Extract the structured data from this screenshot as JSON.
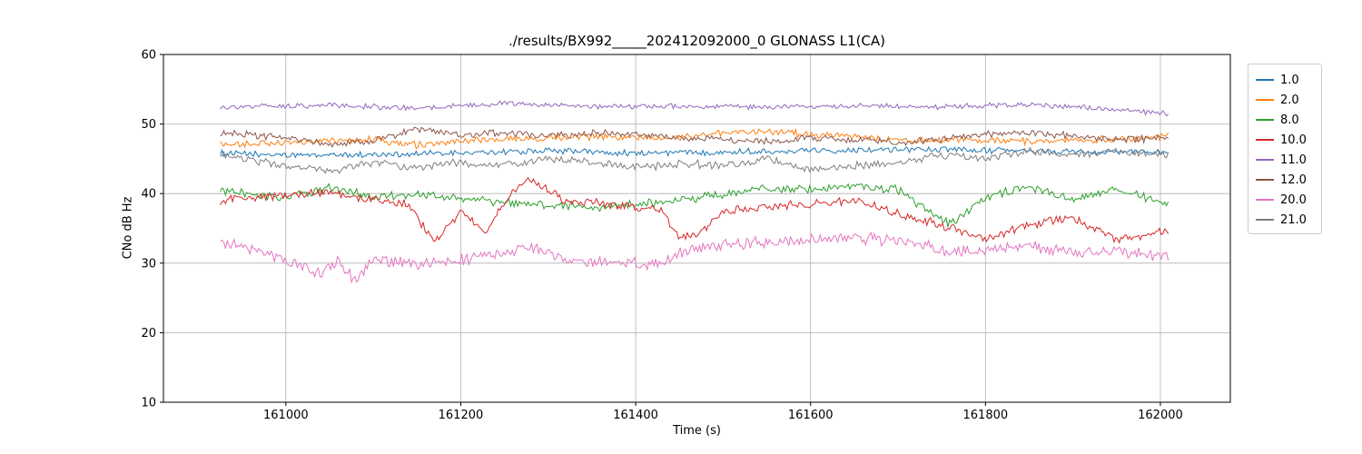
{
  "figure": {
    "title": "./results/BX992_____202412092000_0 GLONASS L1(CA)",
    "xlabel": "Time (s)",
    "ylabel": "CNo dB Hz"
  },
  "chart_data": {
    "type": "line",
    "title": "./results/BX992_____202412092000_0 GLONASS L1(CA)",
    "xlabel": "Time (s)",
    "ylabel": "CNo dB Hz",
    "xlim": [
      160860,
      162080
    ],
    "ylim": [
      10,
      60
    ],
    "x_ticks": [
      161000,
      161200,
      161400,
      161600,
      161800,
      162000
    ],
    "y_ticks": [
      10,
      20,
      30,
      40,
      50,
      60
    ],
    "grid": true,
    "grid_color": "#b0b0b0",
    "legend_position": "outside-upper-right",
    "legend_labels": [
      "1.0",
      "2.0",
      "8.0",
      "10.0",
      "11.0",
      "12.0",
      "20.0",
      "21.0"
    ],
    "series": [
      {
        "name": "1.0",
        "color": "#1f77b4",
        "noise": 0.35,
        "points": [
          [
            160925,
            45.8
          ],
          [
            161000,
            45.5
          ],
          [
            161100,
            45.6
          ],
          [
            161200,
            45.8
          ],
          [
            161300,
            46.2
          ],
          [
            161400,
            45.8
          ],
          [
            161500,
            46.0
          ],
          [
            161600,
            46.2
          ],
          [
            161700,
            46.4
          ],
          [
            161800,
            46.2
          ],
          [
            161900,
            46.0
          ],
          [
            162010,
            46.0
          ]
        ]
      },
      {
        "name": "2.0",
        "color": "#ff7f0e",
        "noise": 0.4,
        "points": [
          [
            160925,
            47.0
          ],
          [
            161000,
            47.3
          ],
          [
            161100,
            47.8
          ],
          [
            161150,
            47.0
          ],
          [
            161250,
            47.8
          ],
          [
            161350,
            48.2
          ],
          [
            161450,
            48.0
          ],
          [
            161500,
            48.8
          ],
          [
            161550,
            48.9
          ],
          [
            161650,
            48.2
          ],
          [
            161700,
            47.5
          ],
          [
            161750,
            47.8
          ],
          [
            161850,
            47.5
          ],
          [
            161950,
            47.8
          ],
          [
            162010,
            48.3
          ]
        ]
      },
      {
        "name": "8.0",
        "color": "#2ca02c",
        "noise": 0.5,
        "points": [
          [
            160925,
            40.3
          ],
          [
            161000,
            39.5
          ],
          [
            161050,
            40.8
          ],
          [
            161100,
            39.5
          ],
          [
            161150,
            39.8
          ],
          [
            161250,
            38.8
          ],
          [
            161350,
            38.0
          ],
          [
            161400,
            38.5
          ],
          [
            161450,
            39.0
          ],
          [
            161550,
            40.8
          ],
          [
            161600,
            40.5
          ],
          [
            161650,
            41.2
          ],
          [
            161700,
            40.5
          ],
          [
            161760,
            35.5
          ],
          [
            161800,
            39.5
          ],
          [
            161850,
            41.0
          ],
          [
            161900,
            39.0
          ],
          [
            161950,
            40.8
          ],
          [
            162010,
            38.5
          ]
        ]
      },
      {
        "name": "10.0",
        "color": "#d62728",
        "noise": 0.5,
        "points": [
          [
            160925,
            39.0
          ],
          [
            161000,
            39.8
          ],
          [
            161050,
            40.2
          ],
          [
            161100,
            39.0
          ],
          [
            161140,
            38.5
          ],
          [
            161170,
            33.0
          ],
          [
            161200,
            37.5
          ],
          [
            161230,
            34.5
          ],
          [
            161260,
            40.5
          ],
          [
            161280,
            42.0
          ],
          [
            161320,
            39.0
          ],
          [
            161360,
            38.5
          ],
          [
            161400,
            38.0
          ],
          [
            161430,
            37.8
          ],
          [
            161450,
            33.5
          ],
          [
            161470,
            34.0
          ],
          [
            161500,
            37.5
          ],
          [
            161550,
            38.0
          ],
          [
            161600,
            38.5
          ],
          [
            161650,
            39.0
          ],
          [
            161700,
            37.0
          ],
          [
            161750,
            35.5
          ],
          [
            161800,
            33.5
          ],
          [
            161850,
            35.5
          ],
          [
            161900,
            36.5
          ],
          [
            161950,
            33.5
          ],
          [
            162010,
            34.5
          ]
        ]
      },
      {
        "name": "11.0",
        "color": "#9467bd",
        "noise": 0.3,
        "points": [
          [
            160925,
            52.5
          ],
          [
            161050,
            52.7
          ],
          [
            161150,
            52.3
          ],
          [
            161250,
            53.0
          ],
          [
            161350,
            52.5
          ],
          [
            161450,
            52.6
          ],
          [
            161550,
            52.4
          ],
          [
            161650,
            52.6
          ],
          [
            161750,
            52.5
          ],
          [
            161850,
            52.8
          ],
          [
            161920,
            52.3
          ],
          [
            162010,
            51.5
          ]
        ]
      },
      {
        "name": "12.0",
        "color": "#8c564b",
        "noise": 0.4,
        "points": [
          [
            160925,
            48.8
          ],
          [
            161000,
            48.0
          ],
          [
            161050,
            47.0
          ],
          [
            161100,
            47.5
          ],
          [
            161150,
            49.3
          ],
          [
            161200,
            48.5
          ],
          [
            161250,
            48.8
          ],
          [
            161300,
            48.2
          ],
          [
            161350,
            48.8
          ],
          [
            161400,
            48.5
          ],
          [
            161450,
            48.0
          ],
          [
            161500,
            47.8
          ],
          [
            161550,
            47.5
          ],
          [
            161600,
            48.0
          ],
          [
            161650,
            47.8
          ],
          [
            161700,
            47.3
          ],
          [
            161750,
            47.8
          ],
          [
            161800,
            48.5
          ],
          [
            161850,
            48.8
          ],
          [
            161900,
            48.2
          ],
          [
            161950,
            47.8
          ],
          [
            162010,
            48.0
          ]
        ]
      },
      {
        "name": "20.0",
        "color": "#e377c2",
        "noise": 0.7,
        "points": [
          [
            160925,
            33.0
          ],
          [
            160975,
            31.5
          ],
          [
            161040,
            28.5
          ],
          [
            161060,
            30.5
          ],
          [
            161080,
            27.5
          ],
          [
            161100,
            30.5
          ],
          [
            161150,
            30.0
          ],
          [
            161200,
            30.5
          ],
          [
            161250,
            31.5
          ],
          [
            161280,
            32.5
          ],
          [
            161320,
            30.5
          ],
          [
            161400,
            30.0
          ],
          [
            161430,
            29.8
          ],
          [
            161460,
            32.0
          ],
          [
            161500,
            32.5
          ],
          [
            161550,
            33.0
          ],
          [
            161600,
            33.2
          ],
          [
            161650,
            33.5
          ],
          [
            161700,
            33.3
          ],
          [
            161750,
            31.8
          ],
          [
            161800,
            32.0
          ],
          [
            161850,
            32.5
          ],
          [
            161900,
            31.5
          ],
          [
            161950,
            31.8
          ],
          [
            162010,
            31.0
          ]
        ]
      },
      {
        "name": "21.0",
        "color": "#7f7f7f",
        "noise": 0.45,
        "points": [
          [
            160925,
            45.5
          ],
          [
            161000,
            44.0
          ],
          [
            161050,
            43.2
          ],
          [
            161100,
            44.5
          ],
          [
            161150,
            43.8
          ],
          [
            161200,
            44.5
          ],
          [
            161250,
            44.0
          ],
          [
            161300,
            45.0
          ],
          [
            161350,
            44.5
          ],
          [
            161400,
            43.8
          ],
          [
            161450,
            44.3
          ],
          [
            161500,
            44.0
          ],
          [
            161550,
            45.0
          ],
          [
            161600,
            43.5
          ],
          [
            161650,
            44.0
          ],
          [
            161700,
            44.5
          ],
          [
            161750,
            45.5
          ],
          [
            161800,
            45.0
          ],
          [
            161850,
            46.0
          ],
          [
            161900,
            45.5
          ],
          [
            161950,
            46.0
          ],
          [
            162010,
            45.5
          ]
        ]
      }
    ]
  }
}
